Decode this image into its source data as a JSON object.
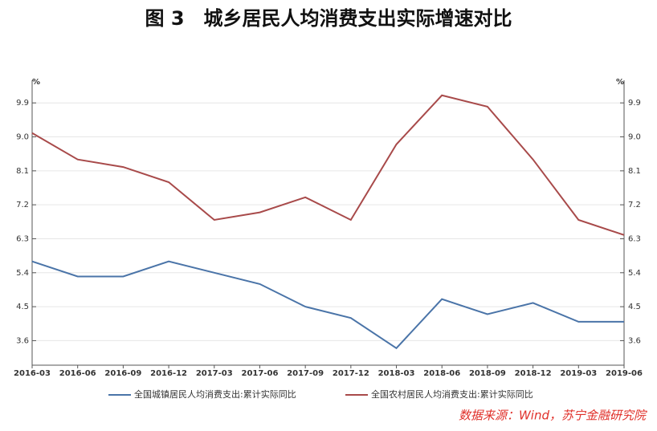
{
  "chart_data": {
    "type": "line",
    "title": "图 3　城乡居民人均消费支出实际增速对比",
    "y_label": "%",
    "y2_label": "%",
    "categories": [
      "2016-03",
      "2016-06",
      "2016-09",
      "2016-12",
      "2017-03",
      "2017-06",
      "2017-09",
      "2017-12",
      "2018-03",
      "2018-06",
      "2018-09",
      "2018-12",
      "2019-03",
      "2019-06"
    ],
    "series": [
      {
        "name": "全国城镇居民人均消费支出:累计实际同比",
        "color": "#4a74a8",
        "values": [
          5.7,
          5.3,
          5.3,
          5.7,
          5.4,
          5.1,
          4.5,
          4.2,
          3.4,
          4.7,
          4.3,
          4.6,
          4.1,
          4.1
        ]
      },
      {
        "name": "全国农村居民人均消费支出:累计实际同比",
        "color": "#a84a4a",
        "values": [
          9.1,
          8.4,
          8.2,
          7.8,
          6.8,
          7.0,
          7.4,
          6.8,
          8.8,
          10.1,
          9.8,
          8.4,
          6.8,
          6.4
        ]
      }
    ],
    "ylim": [
      2.95,
      10.5
    ],
    "yticks": [
      3.6,
      4.5,
      5.4,
      6.3,
      7.2,
      8.1,
      {
        "value": 9,
        "label": "9.0"
      },
      9.9
    ],
    "y2lim": [
      2.95,
      10.5
    ],
    "y2ticks": [
      3.6,
      4.5,
      5.4,
      6.3,
      7.2,
      8.1,
      {
        "value": 9,
        "label": "9.0"
      },
      9.9
    ],
    "grid": true,
    "source": "数据来源：Wind，苏宁金融研究院"
  }
}
